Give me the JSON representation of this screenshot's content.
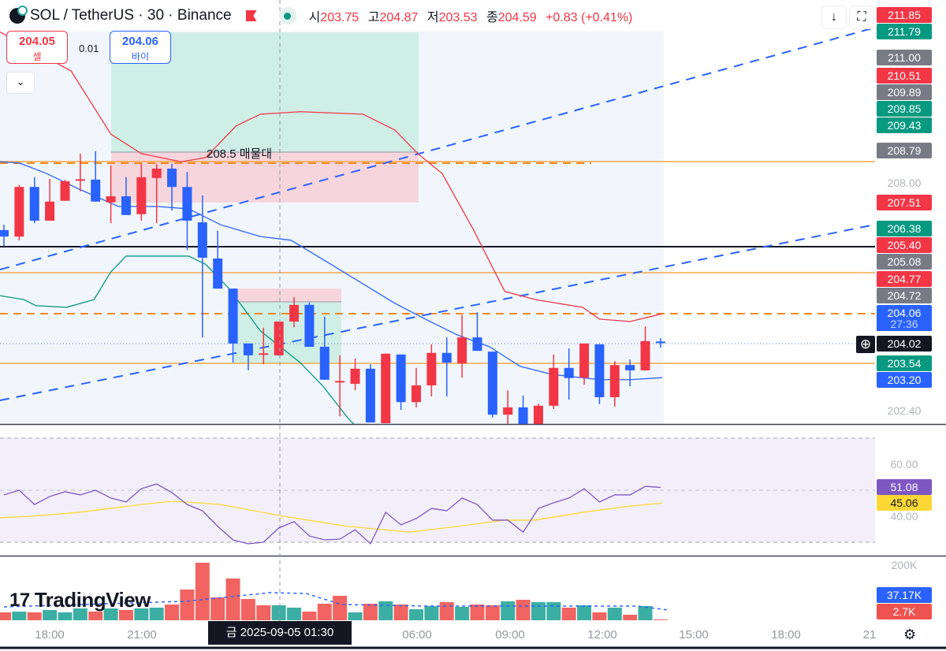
{
  "header": {
    "symbol": "SOL / TetherUS · 30 · Binance",
    "ohlc": [
      {
        "k": "시",
        "v": "203.75"
      },
      {
        "k": "고",
        "v": "204.87"
      },
      {
        "k": "저",
        "v": "203.53"
      },
      {
        "k": "종",
        "v": "204.59"
      }
    ],
    "change": "+0.83 (+0.41%)"
  },
  "trade": {
    "sell_price": "204.05",
    "sell_label": "셀",
    "spread": "0.01",
    "buy_price": "204.06",
    "buy_label": "바이"
  },
  "buttons": {
    "chevron": "⌄",
    "scroll_down": "↓",
    "fullscreen": "⛶",
    "crosshair_add": "⊕",
    "settings": "⚙"
  },
  "zone_label": "208.5 매물대",
  "price_labels": [
    {
      "t": "211.85",
      "c": "#f23645"
    },
    {
      "t": "211.79",
      "c": "#089981"
    },
    {
      "t": "211.00",
      "c": "#787b86"
    },
    {
      "t": "210.51",
      "c": "#f23645"
    },
    {
      "t": "209.89",
      "c": "#787b86"
    },
    {
      "t": "209.85",
      "c": "#089981"
    },
    {
      "t": "209.43",
      "c": "#089981"
    },
    {
      "t": "208.79",
      "c": "#787b86"
    },
    {
      "t": "208.00",
      "c": ""
    },
    {
      "t": "207.51",
      "c": "#f23645"
    },
    {
      "t": "206.38",
      "c": "#089981"
    },
    {
      "t": "205.40",
      "c": "#f23645"
    },
    {
      "t": "205.08",
      "c": "#787b86"
    },
    {
      "t": "204.77",
      "c": "#f23645"
    },
    {
      "t": "204.72",
      "c": "#787b86"
    },
    {
      "t": "204.06",
      "c": "#2962ff"
    },
    {
      "t": "27:36",
      "c": "#2962ff"
    },
    {
      "t": "204.02",
      "c": "#131722"
    },
    {
      "t": "203.54",
      "c": "#089981"
    },
    {
      "t": "203.20",
      "c": "#2962ff"
    },
    {
      "t": "202.40",
      "c": ""
    }
  ],
  "rsi_labels": {
    "upper": "60.00",
    "lower": "40.00",
    "rsi": "51.08",
    "ma": "45.06"
  },
  "volume_labels": {
    "scale": "200K",
    "ma": "37.17K",
    "last": "2.7K"
  },
  "time_axis": [
    "18:00",
    "21:00",
    "06:00",
    "09:00",
    "12:00",
    "15:00",
    "18:00",
    "21"
  ],
  "crosshair_time": "금 2025-09-05  01:30",
  "brand": "TradingView",
  "colors": {
    "up": "#f23645",
    "down": "#2962ff",
    "vol_up": "#ef5350",
    "vol_down": "#26a69a",
    "bb_upper": "#f23645",
    "bb_mid": "#2962ff",
    "bb_lower": "#089981",
    "rsi": "#7e57c2",
    "rsi_ma": "#fdd835"
  },
  "chart_data": {
    "type": "candlestick",
    "candles": [
      [
        206.84,
        206.97,
        206.45,
        206.68
      ],
      [
        206.68,
        207.95,
        206.59,
        207.9
      ],
      [
        207.9,
        208.14,
        207.01,
        207.07
      ],
      [
        207.07,
        208.1,
        207.07,
        207.54
      ],
      [
        207.56,
        208.08,
        207.56,
        208.04
      ],
      [
        208.08,
        208.72,
        207.79,
        208.09
      ],
      [
        208.08,
        208.78,
        207.54,
        207.54
      ],
      [
        207.52,
        208.43,
        207.01,
        207.67
      ],
      [
        207.67,
        208.14,
        207.21,
        207.21
      ],
      [
        207.23,
        208.47,
        207.07,
        208.14
      ],
      [
        208.12,
        208.47,
        207.01,
        208.35
      ],
      [
        208.35,
        208.47,
        207.32,
        207.9
      ],
      [
        207.9,
        208.27,
        206.35,
        207.07
      ],
      [
        207.03,
        207.69,
        204.2,
        206.16
      ],
      [
        206.14,
        206.82,
        205.4,
        205.4
      ],
      [
        205.4,
        205.4,
        203.58,
        204.05
      ],
      [
        204.05,
        204.05,
        203.39,
        203.76
      ],
      [
        203.8,
        204.44,
        203.54,
        203.81
      ],
      [
        203.76,
        204.59,
        203.76,
        204.59
      ],
      [
        204.59,
        205.19,
        204.45,
        205.0
      ],
      [
        205.0,
        205.06,
        203.97,
        203.97
      ],
      [
        203.97,
        204.71,
        203.16,
        203.16
      ],
      [
        203.12,
        203.76,
        202.26,
        203.13
      ],
      [
        203.06,
        203.68,
        202.9,
        203.43
      ],
      [
        203.43,
        203.54,
        202.11,
        202.11
      ],
      [
        202.09,
        203.8,
        202.09,
        203.8
      ],
      [
        203.78,
        203.78,
        202.42,
        202.61
      ],
      [
        202.61,
        203.45,
        202.48,
        203.02
      ],
      [
        203.02,
        204.03,
        202.75,
        203.82
      ],
      [
        203.82,
        204.2,
        202.75,
        203.58
      ],
      [
        203.56,
        204.75,
        203.21,
        204.2
      ],
      [
        204.2,
        204.82,
        203.87,
        203.87
      ],
      [
        203.85,
        203.85,
        202.23,
        202.3
      ],
      [
        202.3,
        202.9,
        202.03,
        202.48
      ],
      [
        202.48,
        202.77,
        202.03,
        202.03
      ],
      [
        202.03,
        202.57,
        202.03,
        202.52
      ],
      [
        202.52,
        203.78,
        202.44,
        203.45
      ],
      [
        203.45,
        203.93,
        202.67,
        203.2
      ],
      [
        203.21,
        204.05,
        203.04,
        204.05
      ],
      [
        204.03,
        204.03,
        202.56,
        202.73
      ],
      [
        202.73,
        203.62,
        202.5,
        203.52
      ],
      [
        203.52,
        203.66,
        203.0,
        203.39
      ],
      [
        203.39,
        204.47,
        203.39,
        204.11
      ],
      [
        204.1,
        204.18,
        203.95,
        204.08
      ]
    ],
    "bb_upper": [
      [
        -0.3,
        211.72
      ],
      [
        4.4,
        210.75
      ],
      [
        7,
        209.2
      ],
      [
        9,
        208.72
      ],
      [
        11.6,
        208.52
      ],
      [
        13.2,
        208.62
      ],
      [
        15.2,
        209.4
      ],
      [
        16.8,
        209.69
      ],
      [
        19.4,
        209.75
      ],
      [
        23.5,
        209.69
      ],
      [
        25.6,
        209.3
      ],
      [
        27.1,
        208.72
      ],
      [
        28.7,
        208.23
      ],
      [
        30.7,
        206.88
      ],
      [
        32.8,
        205.33
      ],
      [
        34.8,
        205.13
      ],
      [
        37.9,
        204.94
      ],
      [
        39,
        204.65
      ],
      [
        41,
        204.59
      ],
      [
        43.1,
        204.78
      ]
    ],
    "bb_mid": [
      [
        -0.3,
        208.52
      ],
      [
        1,
        208.49
      ],
      [
        2.8,
        208.23
      ],
      [
        4.9,
        207.85
      ],
      [
        7.5,
        207.42
      ],
      [
        10.1,
        207.42
      ],
      [
        12.1,
        207.36
      ],
      [
        14.2,
        206.97
      ],
      [
        16.8,
        206.68
      ],
      [
        18.8,
        206.59
      ],
      [
        21.4,
        206.0
      ],
      [
        23.5,
        205.52
      ],
      [
        25.6,
        205.04
      ],
      [
        27.6,
        204.65
      ],
      [
        29.7,
        204.26
      ],
      [
        31.8,
        203.97
      ],
      [
        33.8,
        203.49
      ],
      [
        35.9,
        203.29
      ],
      [
        39,
        203.16
      ],
      [
        41,
        203.16
      ],
      [
        43.1,
        203.21
      ]
    ],
    "bb_lower": [
      [
        -0.3,
        205.23
      ],
      [
        1.3,
        205.13
      ],
      [
        2.1,
        204.98
      ],
      [
        4.1,
        204.94
      ],
      [
        5.9,
        205.13
      ],
      [
        7,
        205.81
      ],
      [
        8,
        206.2
      ],
      [
        12.1,
        206.2
      ],
      [
        13.2,
        206.0
      ],
      [
        14.7,
        205.42
      ],
      [
        16.8,
        204.36
      ],
      [
        19.4,
        203.58
      ],
      [
        20.9,
        203.0
      ],
      [
        22.5,
        202.23
      ],
      [
        24.5,
        201.45
      ]
    ],
    "rsi": [
      48.2,
      50.0,
      44.5,
      47.6,
      49.4,
      48.2,
      50.0,
      47.0,
      45.5,
      50.6,
      52.4,
      49.1,
      44.5,
      42.1,
      36.1,
      30.9,
      29.4,
      30.0,
      35.5,
      37.9,
      32.4,
      30.9,
      31.2,
      34.8,
      29.4,
      41.5,
      36.7,
      39.1,
      43.0,
      42.1,
      47.0,
      44.5,
      38.5,
      38.5,
      33.9,
      43.0,
      45.2,
      47.0,
      50.6,
      45.5,
      48.2,
      48.2,
      51.5,
      51.08
    ],
    "rsi_ma": [
      [
        -0.3,
        39.4
      ],
      [
        1.8,
        40.0
      ],
      [
        4.9,
        41.5
      ],
      [
        9,
        44.5
      ],
      [
        11.1,
        45.8
      ],
      [
        14.2,
        44.5
      ],
      [
        18.3,
        40.0
      ],
      [
        22.5,
        36.1
      ],
      [
        26.6,
        33.9
      ],
      [
        29.7,
        36.1
      ],
      [
        32.8,
        38.5
      ],
      [
        34.8,
        38.5
      ],
      [
        37.9,
        41.5
      ],
      [
        41,
        43.9
      ],
      [
        43.1,
        45.06
      ]
    ],
    "volume_k": [
      28.6,
      31.4,
      28.6,
      37.1,
      28.6,
      42.9,
      31.4,
      42.9,
      37.1,
      42.9,
      45.7,
      57.1,
      111.4,
      208.6,
      82.9,
      151.4,
      77.1,
      54.3,
      54.3,
      45.7,
      31.4,
      60.0,
      88.6,
      28.6,
      60.0,
      68.6,
      57.1,
      40.0,
      51.4,
      65.7,
      48.6,
      57.1,
      54.3,
      68.6,
      74.3,
      65.7,
      65.7,
      45.7,
      54.3,
      28.6,
      45.7,
      20.0,
      51.4,
      2.7
    ],
    "volume_dir": "rgrgggrgrggrrrrrrrggrrrgrgrggrgrrgrggrgrgrgr",
    "volume_ma_k": [
      [
        0,
        48.6
      ],
      [
        11.9,
        68.6
      ],
      [
        17.4,
        100
      ],
      [
        19.8,
        97
      ],
      [
        22.1,
        57.1
      ],
      [
        27.7,
        51.4
      ],
      [
        41.5,
        51.4
      ],
      [
        43.5,
        37.17
      ]
    ]
  }
}
